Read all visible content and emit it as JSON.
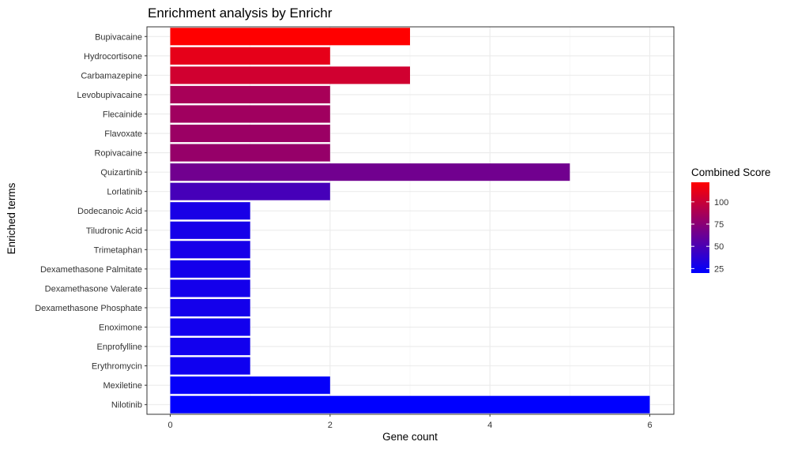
{
  "chart_data": {
    "type": "bar",
    "orientation": "horizontal",
    "title": "Enrichment analysis by Enrichr",
    "xlabel": "Gene count",
    "ylabel": "Enriched terms",
    "xlim": [
      0,
      6
    ],
    "x_ticks": [
      0,
      2,
      4,
      6
    ],
    "grid": true,
    "categories": [
      "Bupivacaine",
      "Hydrocortisone",
      "Carbamazepine",
      "Levobupivacaine",
      "Flecainide",
      "Flavoxate",
      "Ropivacaine",
      "Quizartinib",
      "Lorlatinib",
      "Dodecanoic Acid",
      "Tiludronic Acid",
      "Trimetaphan",
      "Dexamethasone Palmitate",
      "Dexamethasone Valerate",
      "Dexamethasone Phosphate",
      "Enoximone",
      "Enprofylline",
      "Erythromycin",
      "Mexiletine",
      "Nilotinib"
    ],
    "values": [
      3,
      2,
      3,
      2,
      2,
      2,
      2,
      5,
      2,
      1,
      1,
      1,
      1,
      1,
      1,
      1,
      1,
      1,
      2,
      6
    ],
    "color_values": [
      122,
      112,
      103,
      87,
      84,
      82,
      80,
      65,
      48,
      30,
      29,
      29,
      28,
      28,
      28,
      27,
      27,
      26,
      22,
      20
    ],
    "legend": {
      "title": "Combined Score",
      "ticks": [
        25,
        50,
        75,
        100
      ],
      "range": [
        20,
        122
      ],
      "low_color": "#0000ff",
      "high_color": "#ff0000",
      "placement": "right"
    }
  }
}
